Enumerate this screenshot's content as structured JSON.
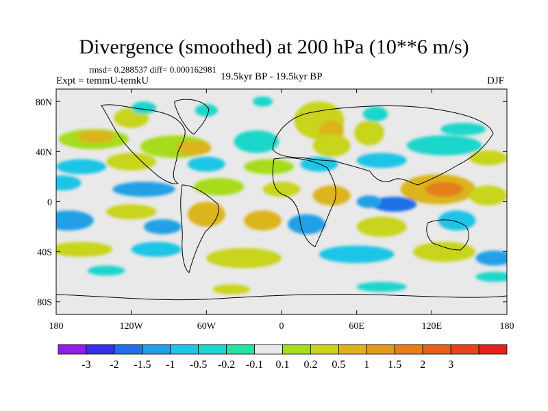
{
  "title": "Divergence (smoothed) at 200 hPa (10**6 m/s)",
  "stats": {
    "text": "rmsd= 0.288537 diff= 0.000162981"
  },
  "experiment": "Expt = temmU-temkU",
  "period": "19.5kyr BP - 19.5kyr BP",
  "season": "DJF",
  "axes": {
    "lon_range": [
      -180,
      180
    ],
    "lat_range": [
      -90,
      90
    ],
    "x_ticks": [
      {
        "value": -180,
        "label": "180"
      },
      {
        "value": -120,
        "label": "120W"
      },
      {
        "value": -60,
        "label": "60W"
      },
      {
        "value": 0,
        "label": "0"
      },
      {
        "value": 60,
        "label": "60E"
      },
      {
        "value": 120,
        "label": "120E"
      },
      {
        "value": 180,
        "label": "180"
      }
    ],
    "y_ticks": [
      {
        "value": 80,
        "label": "80N"
      },
      {
        "value": 40,
        "label": "40N"
      },
      {
        "value": 0,
        "label": "0"
      },
      {
        "value": -40,
        "label": "40S"
      },
      {
        "value": -80,
        "label": "80S"
      }
    ]
  },
  "colorbar": {
    "colors": [
      "#8d1fe6",
      "#3530e6",
      "#1f6fe6",
      "#21a0e6",
      "#1fc5e6",
      "#1ed6cc",
      "#27e3a0",
      "#e9e9e9",
      "#a6dc1e",
      "#c9d41f",
      "#dcb41e",
      "#e09a1c",
      "#e67e1b",
      "#e6621c",
      "#e6421c",
      "#e61f1f"
    ],
    "labels": [
      "-3",
      "-2",
      "-1.5",
      "-1",
      "-0.5",
      "-0.2",
      "-0.1",
      "0.1",
      "0.2",
      "0.5",
      "1",
      "1.5",
      "2",
      "3"
    ]
  },
  "field_blobs": [
    {
      "lon": -120,
      "lat": 67,
      "rx": 14,
      "ry": 8,
      "level": 9
    },
    {
      "lon": -110,
      "lat": 75,
      "rx": 10,
      "ry": 5,
      "level": 5
    },
    {
      "lon": -60,
      "lat": 73,
      "rx": 9,
      "ry": 5,
      "level": 5
    },
    {
      "lon": -15,
      "lat": 80,
      "rx": 8,
      "ry": 4,
      "level": 5
    },
    {
      "lon": 30,
      "lat": 65,
      "rx": 20,
      "ry": 15,
      "level": 9
    },
    {
      "lon": 40,
      "lat": 57,
      "rx": 10,
      "ry": 8,
      "level": 10
    },
    {
      "lon": 70,
      "lat": 55,
      "rx": 12,
      "ry": 10,
      "level": 9
    },
    {
      "lon": 75,
      "lat": 70,
      "rx": 10,
      "ry": 6,
      "level": 5
    },
    {
      "lon": 145,
      "lat": 58,
      "rx": 18,
      "ry": 5,
      "level": 5
    },
    {
      "lon": -150,
      "lat": 50,
      "rx": 28,
      "ry": 8,
      "level": 8
    },
    {
      "lon": -148,
      "lat": 52,
      "rx": 15,
      "ry": 5,
      "level": 10
    },
    {
      "lon": -85,
      "lat": 44,
      "rx": 28,
      "ry": 9,
      "level": 8
    },
    {
      "lon": -70,
      "lat": 43,
      "rx": 14,
      "ry": 6,
      "level": 10
    },
    {
      "lon": -20,
      "lat": 48,
      "rx": 18,
      "ry": 9,
      "level": 5
    },
    {
      "lon": 40,
      "lat": 45,
      "rx": 15,
      "ry": 9,
      "level": 9
    },
    {
      "lon": 130,
      "lat": 45,
      "rx": 30,
      "ry": 8,
      "level": 5
    },
    {
      "lon": 165,
      "lat": 35,
      "rx": 15,
      "ry": 6,
      "level": 9
    },
    {
      "lon": -160,
      "lat": 28,
      "rx": 20,
      "ry": 6,
      "level": 4
    },
    {
      "lon": -120,
      "lat": 32,
      "rx": 20,
      "ry": 7,
      "level": 9
    },
    {
      "lon": -60,
      "lat": 30,
      "rx": 15,
      "ry": 6,
      "level": 4
    },
    {
      "lon": -10,
      "lat": 28,
      "rx": 20,
      "ry": 6,
      "level": 8
    },
    {
      "lon": 30,
      "lat": 30,
      "rx": 15,
      "ry": 6,
      "level": 4
    },
    {
      "lon": 80,
      "lat": 33,
      "rx": 20,
      "ry": 6,
      "level": 4
    },
    {
      "lon": -175,
      "lat": 15,
      "rx": 15,
      "ry": 6,
      "level": 4
    },
    {
      "lon": -110,
      "lat": 10,
      "rx": 25,
      "ry": 6,
      "level": 3
    },
    {
      "lon": -50,
      "lat": 12,
      "rx": 20,
      "ry": 7,
      "level": 8
    },
    {
      "lon": 0,
      "lat": 10,
      "rx": 15,
      "ry": 6,
      "level": 9
    },
    {
      "lon": 40,
      "lat": 5,
      "rx": 15,
      "ry": 8,
      "level": 10
    },
    {
      "lon": 125,
      "lat": 10,
      "rx": 30,
      "ry": 12,
      "level": 10
    },
    {
      "lon": 130,
      "lat": 10,
      "rx": 15,
      "ry": 6,
      "level": 12
    },
    {
      "lon": 165,
      "lat": 5,
      "rx": 15,
      "ry": 8,
      "level": 9
    },
    {
      "lon": 90,
      "lat": -2,
      "rx": 18,
      "ry": 6,
      "level": 2
    },
    {
      "lon": 70,
      "lat": 0,
      "rx": 10,
      "ry": 5,
      "level": 3
    },
    {
      "lon": -170,
      "lat": -15,
      "rx": 20,
      "ry": 8,
      "level": 3
    },
    {
      "lon": -120,
      "lat": -8,
      "rx": 20,
      "ry": 6,
      "level": 9
    },
    {
      "lon": -95,
      "lat": -20,
      "rx": 15,
      "ry": 6,
      "level": 3
    },
    {
      "lon": -60,
      "lat": -10,
      "rx": 15,
      "ry": 10,
      "level": 10
    },
    {
      "lon": -15,
      "lat": -15,
      "rx": 15,
      "ry": 8,
      "level": 10
    },
    {
      "lon": 20,
      "lat": -18,
      "rx": 15,
      "ry": 8,
      "level": 3
    },
    {
      "lon": 80,
      "lat": -20,
      "rx": 20,
      "ry": 8,
      "level": 9
    },
    {
      "lon": 140,
      "lat": -15,
      "rx": 15,
      "ry": 8,
      "level": 4
    },
    {
      "lon": -160,
      "lat": -38,
      "rx": 25,
      "ry": 6,
      "level": 9
    },
    {
      "lon": -100,
      "lat": -38,
      "rx": 20,
      "ry": 6,
      "level": 4
    },
    {
      "lon": -30,
      "lat": -45,
      "rx": 30,
      "ry": 8,
      "level": 9
    },
    {
      "lon": 60,
      "lat": -42,
      "rx": 30,
      "ry": 7,
      "level": 4
    },
    {
      "lon": 130,
      "lat": -40,
      "rx": 25,
      "ry": 8,
      "level": 9
    },
    {
      "lon": 170,
      "lat": -45,
      "rx": 15,
      "ry": 6,
      "level": 3
    },
    {
      "lon": -140,
      "lat": -55,
      "rx": 15,
      "ry": 4,
      "level": 5
    },
    {
      "lon": 170,
      "lat": -60,
      "rx": 15,
      "ry": 4,
      "level": 5
    },
    {
      "lon": -40,
      "lat": -70,
      "rx": 15,
      "ry": 4,
      "level": 9
    },
    {
      "lon": 80,
      "lat": -68,
      "rx": 20,
      "ry": 4,
      "level": 5
    }
  ]
}
